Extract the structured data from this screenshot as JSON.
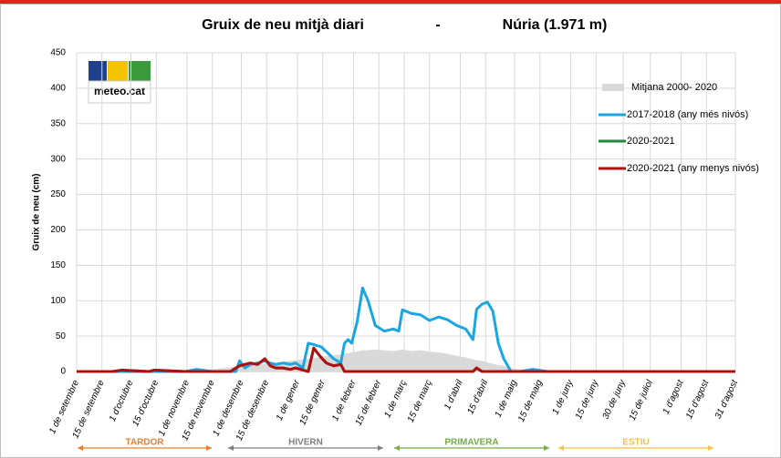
{
  "chart_data": {
    "type": "line",
    "title": "Gruix de neu mitjà diari",
    "title_separator": "-",
    "subtitle": "Núria (1.971 m)",
    "logo": "meteo.cat",
    "y_label": "Gruix de neu (cm)",
    "ylim": [
      0,
      450
    ],
    "yticks": [
      0,
      50,
      100,
      150,
      200,
      250,
      300,
      350,
      400,
      450
    ],
    "xlim": [
      0,
      364
    ],
    "xticks": [
      {
        "value": 0,
        "label": "1 de setembre"
      },
      {
        "value": 14,
        "label": "15 de setembre"
      },
      {
        "value": 30,
        "label": "1 d'octubre"
      },
      {
        "value": 44,
        "label": "15 d'octubre"
      },
      {
        "value": 61,
        "label": "1 de novembre"
      },
      {
        "value": 75,
        "label": "15 de novembre"
      },
      {
        "value": 91,
        "label": "1 de desembre"
      },
      {
        "value": 105,
        "label": "15 de desembre"
      },
      {
        "value": 122,
        "label": "1 de gener"
      },
      {
        "value": 136,
        "label": "15 de gener"
      },
      {
        "value": 153,
        "label": "1 de febrer"
      },
      {
        "value": 167,
        "label": "15 de febrer"
      },
      {
        "value": 181,
        "label": "1 de març"
      },
      {
        "value": 195,
        "label": "15 de març"
      },
      {
        "value": 212,
        "label": "1 d'abril"
      },
      {
        "value": 226,
        "label": "15 d'abril"
      },
      {
        "value": 242,
        "label": "1 de maig"
      },
      {
        "value": 256,
        "label": "15 de maig"
      },
      {
        "value": 273,
        "label": "1 de juny"
      },
      {
        "value": 287,
        "label": "15 de juny"
      },
      {
        "value": 302,
        "label": "30 de juny"
      },
      {
        "value": 317,
        "label": "15 de juliol"
      },
      {
        "value": 334,
        "label": "1 d'agost"
      },
      {
        "value": 348,
        "label": "15 d'agost"
      },
      {
        "value": 364,
        "label": "31 d'agost"
      }
    ],
    "grid": true,
    "x": [
      0,
      20,
      25,
      40,
      43,
      60,
      66,
      75,
      85,
      88,
      90,
      93,
      96,
      100,
      104,
      107,
      110,
      114,
      118,
      121,
      125,
      128,
      131,
      135,
      138,
      142,
      146,
      148,
      150,
      152,
      155,
      158,
      161,
      165,
      170,
      175,
      178,
      180,
      185,
      190,
      195,
      200,
      205,
      210,
      215,
      219,
      221,
      224,
      227,
      230,
      233,
      236,
      240,
      245,
      252,
      260,
      280,
      300,
      320,
      340,
      364
    ],
    "series": [
      {
        "name": "Mitjana  2000- 2020",
        "kind": "area",
        "color": "#d9d9d9",
        "values": [
          0,
          0,
          0,
          0,
          0,
          0,
          1,
          3,
          6,
          7,
          8,
          9,
          10,
          10,
          11,
          12,
          12,
          14,
          15,
          16,
          17,
          18,
          19,
          21,
          22,
          23,
          24,
          25,
          26,
          27,
          28,
          30,
          30,
          31,
          30,
          29,
          30,
          31,
          29,
          30,
          28,
          27,
          25,
          22,
          20,
          17,
          16,
          15,
          13,
          11,
          9,
          8,
          5,
          3,
          0,
          0,
          0,
          0,
          0,
          0,
          0
        ]
      },
      {
        "name": "2017-2018 (any més nivós)",
        "kind": "line",
        "color": "#1aa6e0",
        "values": [
          0,
          0,
          0,
          0,
          0,
          0,
          3,
          0,
          0,
          0,
          15,
          5,
          10,
          12,
          15,
          12,
          10,
          12,
          10,
          12,
          5,
          40,
          38,
          35,
          28,
          18,
          12,
          40,
          45,
          40,
          70,
          118,
          100,
          65,
          57,
          60,
          57,
          87,
          82,
          80,
          72,
          77,
          73,
          65,
          60,
          45,
          88,
          95,
          98,
          85,
          40,
          18,
          0,
          0,
          3,
          0,
          0,
          0,
          0,
          0,
          0
        ]
      },
      {
        "name": "2020-2021",
        "kind": "line",
        "color": "#1e8a3a",
        "values": [
          0,
          0,
          2,
          0,
          2,
          0,
          0,
          0,
          0,
          5,
          8,
          10,
          12,
          10,
          18,
          8,
          5,
          5,
          3,
          5,
          2,
          0,
          33,
          20,
          12,
          8,
          10,
          0,
          0,
          0,
          0,
          0,
          0,
          0,
          0,
          0,
          0,
          0,
          0,
          0,
          0,
          0,
          0,
          0,
          0,
          0,
          5,
          0,
          0,
          0,
          0,
          0,
          0,
          0,
          0,
          0,
          0,
          0,
          0,
          0,
          0
        ]
      },
      {
        "name": "2020-2021 (any menys nivós)",
        "kind": "line",
        "color": "#b00f0f",
        "values": [
          0,
          0,
          2,
          0,
          2,
          0,
          0,
          0,
          0,
          5,
          8,
          10,
          12,
          10,
          18,
          8,
          5,
          5,
          3,
          5,
          2,
          0,
          33,
          20,
          12,
          8,
          10,
          0,
          0,
          0,
          0,
          0,
          0,
          0,
          0,
          0,
          0,
          0,
          0,
          0,
          0,
          0,
          0,
          0,
          0,
          0,
          5,
          0,
          0,
          0,
          0,
          0,
          0,
          0,
          0,
          0,
          0,
          0,
          0,
          0,
          0
        ]
      }
    ],
    "seasons": [
      {
        "label": "TARDOR",
        "color": "#ed7d31"
      },
      {
        "label": "HIVERN",
        "color": "#7f7f7f"
      },
      {
        "label": "PRIMAVERA",
        "color": "#70ad47"
      },
      {
        "label": "ESTIU",
        "color": "#f5c242"
      }
    ]
  }
}
